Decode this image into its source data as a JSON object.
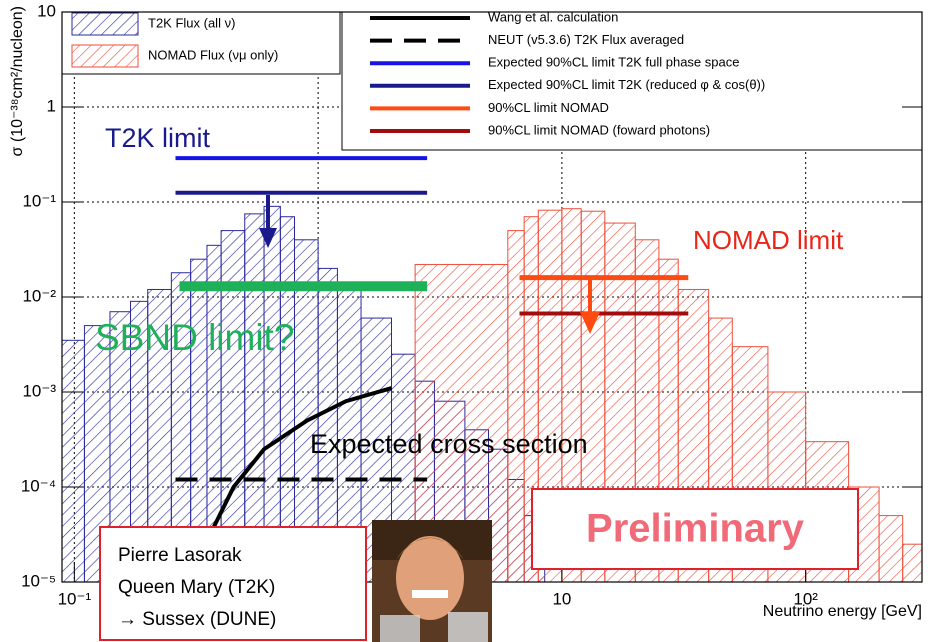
{
  "chart_data": {
    "type": "hist-line",
    "x_label": "Neutrino energy [GeV]",
    "y_label": "σ (10⁻³⁸cm²/nucleon)",
    "log_x": true,
    "log_y": true,
    "grid": true,
    "xlim": [
      0.089,
      300
    ],
    "ylim": [
      1e-05,
      10
    ],
    "xticks": [
      {
        "value": 0.1,
        "label": "10⁻¹"
      },
      1,
      10,
      {
        "value": 100,
        "label": "10²"
      }
    ],
    "yticks": [
      {
        "value": 1e-05,
        "label": "10⁻⁵"
      },
      {
        "value": 0.0001,
        "label": "10⁻⁴"
      },
      {
        "value": 0.001,
        "label": "10⁻³"
      },
      {
        "value": 0.01,
        "label": "10⁻²"
      },
      {
        "value": 0.1,
        "label": "10⁻¹"
      },
      1,
      10
    ],
    "series": [
      {
        "name": "T2K Flux (all ν)",
        "kind": "hist",
        "color": "#2a2aa0",
        "bins": [
          0.089,
          0.11,
          0.14,
          0.17,
          0.2,
          0.25,
          0.3,
          0.35,
          0.4,
          0.5,
          0.6,
          0.7,
          0.8,
          1.0,
          1.2,
          1.5,
          2,
          2.5,
          3,
          4,
          5,
          6,
          7,
          8.5
        ],
        "values": [
          0.0035,
          0.005,
          0.007,
          0.009,
          0.012,
          0.018,
          0.025,
          0.035,
          0.05,
          0.075,
          0.09,
          0.07,
          0.04,
          0.02,
          0.012,
          0.006,
          0.0025,
          0.0013,
          0.0008,
          0.0004,
          0.00025,
          0.00012,
          5e-05
        ]
      },
      {
        "name": "NOMAD Flux (νμ only)",
        "kind": "hist",
        "color": "#f04e3a",
        "bins": [
          2.5,
          6,
          7,
          8,
          10,
          12,
          15,
          20,
          25,
          30,
          40,
          50,
          70,
          100,
          150,
          200,
          250,
          300
        ],
        "values": [
          0.022,
          0.05,
          0.07,
          0.082,
          0.085,
          0.08,
          0.06,
          0.04,
          0.025,
          0.012,
          0.006,
          0.003,
          0.001,
          0.0003,
          0.0001,
          5e-05,
          2.5e-05
        ]
      },
      {
        "name": "Wang et al. calculation",
        "kind": "line",
        "color": "#000000",
        "width": 4,
        "x": [
          0.33,
          0.45,
          0.6,
          0.9,
          1.3,
          2.0
        ],
        "values": [
          2e-05,
          0.0001,
          0.00025,
          0.0005,
          0.0008,
          0.0011
        ]
      },
      {
        "name": "NEUT (v5.3.6) T2K Flux averaged",
        "kind": "line",
        "dash": true,
        "color": "#000000",
        "width": 4,
        "x": [
          0.26,
          2.8
        ],
        "values": [
          0.00012,
          0.00012
        ]
      },
      {
        "name": "Expected 90%CL limit T2K full phase space",
        "kind": "line",
        "color": "#1414e6",
        "width": 4,
        "x": [
          0.26,
          2.8
        ],
        "values": [
          0.29,
          0.29
        ]
      },
      {
        "name": "Expected 90%CL limit T2K (reduced φ & cos(θ))",
        "kind": "line",
        "color": "#1a1a8c",
        "width": 4,
        "x": [
          0.26,
          2.8
        ],
        "values": [
          0.125,
          0.125
        ]
      },
      {
        "name": "90%CL limit NOMAD",
        "kind": "line",
        "color": "#ff4a12",
        "width": 5,
        "x": [
          6.7,
          33
        ],
        "values": [
          0.016,
          0.016
        ]
      },
      {
        "name": "90%CL limit NOMAD (foward photons)",
        "kind": "line",
        "color": "#a00d0d",
        "width": 4,
        "x": [
          6.7,
          33
        ],
        "values": [
          0.0067,
          0.0067
        ]
      },
      {
        "kind": "line",
        "color": "#1fb05a",
        "width": 10,
        "x": [
          0.27,
          2.8
        ],
        "values": [
          0.013,
          0.013
        ]
      }
    ],
    "annotations": [
      "T2K limit",
      "NOMAD limit",
      "SBND limit?",
      "Expected cross section",
      "Preliminary",
      "Pierre Lasorak",
      "Queen Mary (T2K)",
      "→ Sussex (DUNE)"
    ]
  }
}
